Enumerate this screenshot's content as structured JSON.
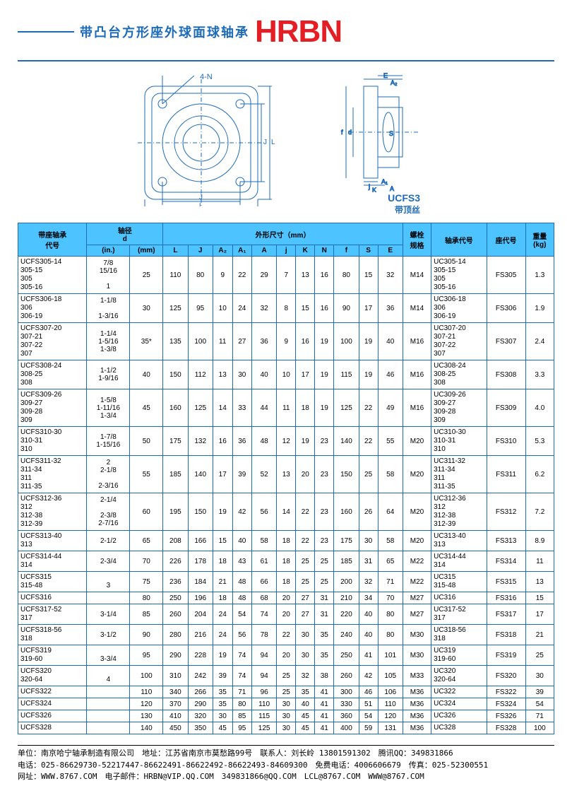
{
  "header": {
    "subtitle": "带凸台方形座外球面球轴承",
    "logo": "HRBN",
    "diag_labels": {
      "fourN": "4-N",
      "ucfs3": "UCFS3",
      "sub": "带顶丝"
    }
  },
  "table": {
    "head1": {
      "code": "带座轴承\n代号",
      "shaft": "轴径\nd",
      "dims": "外形尺寸（mm）",
      "bolt": "螺栓\n规格",
      "brg": "轴承代号",
      "seat": "座代号",
      "wt": "重量\n(kg)"
    },
    "head2": {
      "in": "(in.)",
      "mm": "(mm)",
      "L": "L",
      "J": "J",
      "A2": "A₂",
      "A1": "A₁",
      "A": "A",
      "j": "j",
      "K": "K",
      "N": "N",
      "f": "f",
      "S": "S",
      "E": "E"
    },
    "rows": [
      {
        "code": "UCFS305-14\n305-15\n305\n305-16",
        "in": "7/8\n15/16\n\n1",
        "mm": "25",
        "L": "110",
        "J": "80",
        "A2": "9",
        "A1": "22",
        "A": "29",
        "j": "7",
        "K": "13",
        "N": "16",
        "f": "80",
        "S": "15",
        "E": "32",
        "bolt": "M14",
        "brg": "UC305-14\n305-15\n305\n305-16",
        "seat": "FS305",
        "wt": "1.3"
      },
      {
        "code": "UCFS306-18\n306\n306-19",
        "in": "1-1/8\n\n1-3/16",
        "mm": "30",
        "L": "125",
        "J": "95",
        "A2": "10",
        "A1": "24",
        "A": "32",
        "j": "8",
        "K": "15",
        "N": "16",
        "f": "90",
        "S": "17",
        "E": "36",
        "bolt": "M14",
        "brg": "UC306-18\n306\n306-19",
        "seat": "FS306",
        "wt": "1.9"
      },
      {
        "code": "UCFS307-20\n307-21\n307-22\n307",
        "in": "1-1/4\n1-5/16\n1-3/8",
        "mm": "35*",
        "L": "135",
        "J": "100",
        "A2": "11",
        "A1": "27",
        "A": "36",
        "j": "9",
        "K": "16",
        "N": "19",
        "f": "100",
        "S": "19",
        "E": "40",
        "bolt": "M16",
        "brg": "UC307-20\n307-21\n307-22\n307",
        "seat": "FS307",
        "wt": "2.4"
      },
      {
        "code": "UCFS308-24\n308-25\n308",
        "in": "1-1/2\n1-9/16",
        "mm": "40",
        "L": "150",
        "J": "112",
        "A2": "13",
        "A1": "30",
        "A": "40",
        "j": "10",
        "K": "17",
        "N": "19",
        "f": "115",
        "S": "19",
        "E": "46",
        "bolt": "M16",
        "brg": "UC308-24\n308-25\n308",
        "seat": "FS308",
        "wt": "3.3"
      },
      {
        "code": "UCFS309-26\n309-27\n309-28\n309",
        "in": "1-5/8\n1-11/16\n1-3/4",
        "mm": "45",
        "L": "160",
        "J": "125",
        "A2": "14",
        "A1": "33",
        "A": "44",
        "j": "11",
        "K": "18",
        "N": "19",
        "f": "125",
        "S": "22",
        "E": "49",
        "bolt": "M16",
        "brg": "UC309-26\n309-27\n309-28\n309",
        "seat": "FS309",
        "wt": "4.0"
      },
      {
        "code": "UCFS310-30\n310-31\n310",
        "in": "1-7/8\n1-15/16",
        "mm": "50",
        "L": "175",
        "J": "132",
        "A2": "16",
        "A1": "36",
        "A": "48",
        "j": "12",
        "K": "19",
        "N": "23",
        "f": "140",
        "S": "22",
        "E": "55",
        "bolt": "M20",
        "brg": "UC310-30\n310-31\n310",
        "seat": "FS310",
        "wt": "5.3"
      },
      {
        "code": "UCFS311-32\n311-34\n311\n311-35",
        "in": "2\n2-1/8\n\n2-3/16",
        "mm": "55",
        "L": "185",
        "J": "140",
        "A2": "17",
        "A1": "39",
        "A": "52",
        "j": "13",
        "K": "20",
        "N": "23",
        "f": "150",
        "S": "25",
        "E": "58",
        "bolt": "M20",
        "brg": "UC311-32\n311-34\n311\n311-35",
        "seat": "FS311",
        "wt": "6.2"
      },
      {
        "code": "UCFS312-36\n312\n312-38\n312-39",
        "in": "2-1/4\n\n2-3/8\n2-7/16",
        "mm": "60",
        "L": "195",
        "J": "150",
        "A2": "19",
        "A1": "42",
        "A": "56",
        "j": "14",
        "K": "22",
        "N": "23",
        "f": "160",
        "S": "26",
        "E": "64",
        "bolt": "M20",
        "brg": "UC312-36\n312\n312-38\n312-39",
        "seat": "FS312",
        "wt": "7.2"
      },
      {
        "code": "UCFS313-40\n313",
        "in": "2-1/2",
        "mm": "65",
        "L": "208",
        "J": "166",
        "A2": "15",
        "A1": "40",
        "A": "58",
        "j": "18",
        "K": "22",
        "N": "23",
        "f": "175",
        "S": "30",
        "E": "58",
        "bolt": "M20",
        "brg": "UC313-40\n313",
        "seat": "FS313",
        "wt": "8.9"
      },
      {
        "code": "UCFS314-44\n314",
        "in": "2-3/4",
        "mm": "70",
        "L": "226",
        "J": "178",
        "A2": "18",
        "A1": "43",
        "A": "61",
        "j": "18",
        "K": "25",
        "N": "25",
        "f": "185",
        "S": "31",
        "E": "65",
        "bolt": "M22",
        "brg": "UC314-44\n314",
        "seat": "FS314",
        "wt": "11"
      },
      {
        "code": "UCFS315\n315-48",
        "in": "\n3",
        "mm": "75",
        "L": "236",
        "J": "184",
        "A2": "21",
        "A1": "48",
        "A": "66",
        "j": "18",
        "K": "25",
        "N": "25",
        "f": "200",
        "S": "32",
        "E": "71",
        "bolt": "M22",
        "brg": "UC315\n315-48",
        "seat": "FS315",
        "wt": "13"
      },
      {
        "code": "UCFS316",
        "in": "",
        "mm": "80",
        "L": "250",
        "J": "196",
        "A2": "18",
        "A1": "48",
        "A": "68",
        "j": "20",
        "K": "27",
        "N": "31",
        "f": "210",
        "S": "34",
        "E": "70",
        "bolt": "M27",
        "brg": "UC316",
        "seat": "FS316",
        "wt": "15"
      },
      {
        "code": "UCFS317-52\n317",
        "in": "3-1/4",
        "mm": "85",
        "L": "260",
        "J": "204",
        "A2": "24",
        "A1": "54",
        "A": "74",
        "j": "20",
        "K": "27",
        "N": "31",
        "f": "220",
        "S": "40",
        "E": "80",
        "bolt": "M27",
        "brg": "UC317-52\n317",
        "seat": "FS317",
        "wt": "17"
      },
      {
        "code": "UCFS318-56\n318",
        "in": "3-1/2",
        "mm": "90",
        "L": "280",
        "J": "216",
        "A2": "24",
        "A1": "56",
        "A": "78",
        "j": "22",
        "K": "30",
        "N": "35",
        "f": "240",
        "S": "40",
        "E": "80",
        "bolt": "M30",
        "brg": "UC318-56\n318",
        "seat": "FS318",
        "wt": "21"
      },
      {
        "code": "UCFS319\n319-60",
        "in": "\n3-3/4",
        "mm": "95",
        "L": "290",
        "J": "228",
        "A2": "19",
        "A1": "74",
        "A": "94",
        "j": "20",
        "K": "30",
        "N": "35",
        "f": "250",
        "S": "41",
        "E": "101",
        "bolt": "M30",
        "brg": "UC319\n319-60",
        "seat": "FS319",
        "wt": "25"
      },
      {
        "code": "UCFS320\n320-64",
        "in": "\n4",
        "mm": "100",
        "L": "310",
        "J": "242",
        "A2": "39",
        "A1": "74",
        "A": "94",
        "j": "25",
        "K": "32",
        "N": "38",
        "f": "260",
        "S": "42",
        "E": "105",
        "bolt": "M33",
        "brg": "UC320\n320-64",
        "seat": "FS320",
        "wt": "30"
      },
      {
        "code": "UCFS322",
        "in": "",
        "mm": "110",
        "L": "340",
        "J": "266",
        "A2": "35",
        "A1": "71",
        "A": "96",
        "j": "25",
        "K": "35",
        "N": "41",
        "f": "300",
        "S": "46",
        "E": "106",
        "bolt": "M36",
        "brg": "UC322",
        "seat": "FS322",
        "wt": "39"
      },
      {
        "code": "UCFS324",
        "in": "",
        "mm": "120",
        "L": "370",
        "J": "290",
        "A2": "35",
        "A1": "80",
        "A": "110",
        "j": "30",
        "K": "40",
        "N": "41",
        "f": "330",
        "S": "51",
        "E": "110",
        "bolt": "M36",
        "brg": "UC324",
        "seat": "FS324",
        "wt": "54"
      },
      {
        "code": "UCFS326",
        "in": "",
        "mm": "130",
        "L": "410",
        "J": "320",
        "A2": "30",
        "A1": "85",
        "A": "115",
        "j": "30",
        "K": "45",
        "N": "41",
        "f": "360",
        "S": "54",
        "E": "120",
        "bolt": "M36",
        "brg": "UC326",
        "seat": "FS326",
        "wt": "71"
      },
      {
        "code": "UCFS328",
        "in": "",
        "mm": "140",
        "L": "450",
        "J": "350",
        "A2": "45",
        "A1": "95",
        "A": "125",
        "j": "30",
        "K": "45",
        "N": "41",
        "f": "400",
        "S": "59",
        "E": "131",
        "bolt": "M36",
        "brg": "UC328",
        "seat": "FS328",
        "wt": "100"
      }
    ]
  },
  "footer": {
    "l1": "单位：南京哈宁轴承制造有限公司　地址：江苏省南京市莫愁路99号　联系人：刘长岭 13801591302　腾讯QQ：349831866",
    "l2": "电话：025-86629730-52217447-86622491-86622492-86622493-84609300　免费电话：4006606679　传真：025-52300551",
    "l3": "网址：WWW.8767.COM　电子邮件：HRBN@VIP.QQ.COM　349831866@QQ.COM　LCL@8767.COM　WWW@8767.COM"
  }
}
